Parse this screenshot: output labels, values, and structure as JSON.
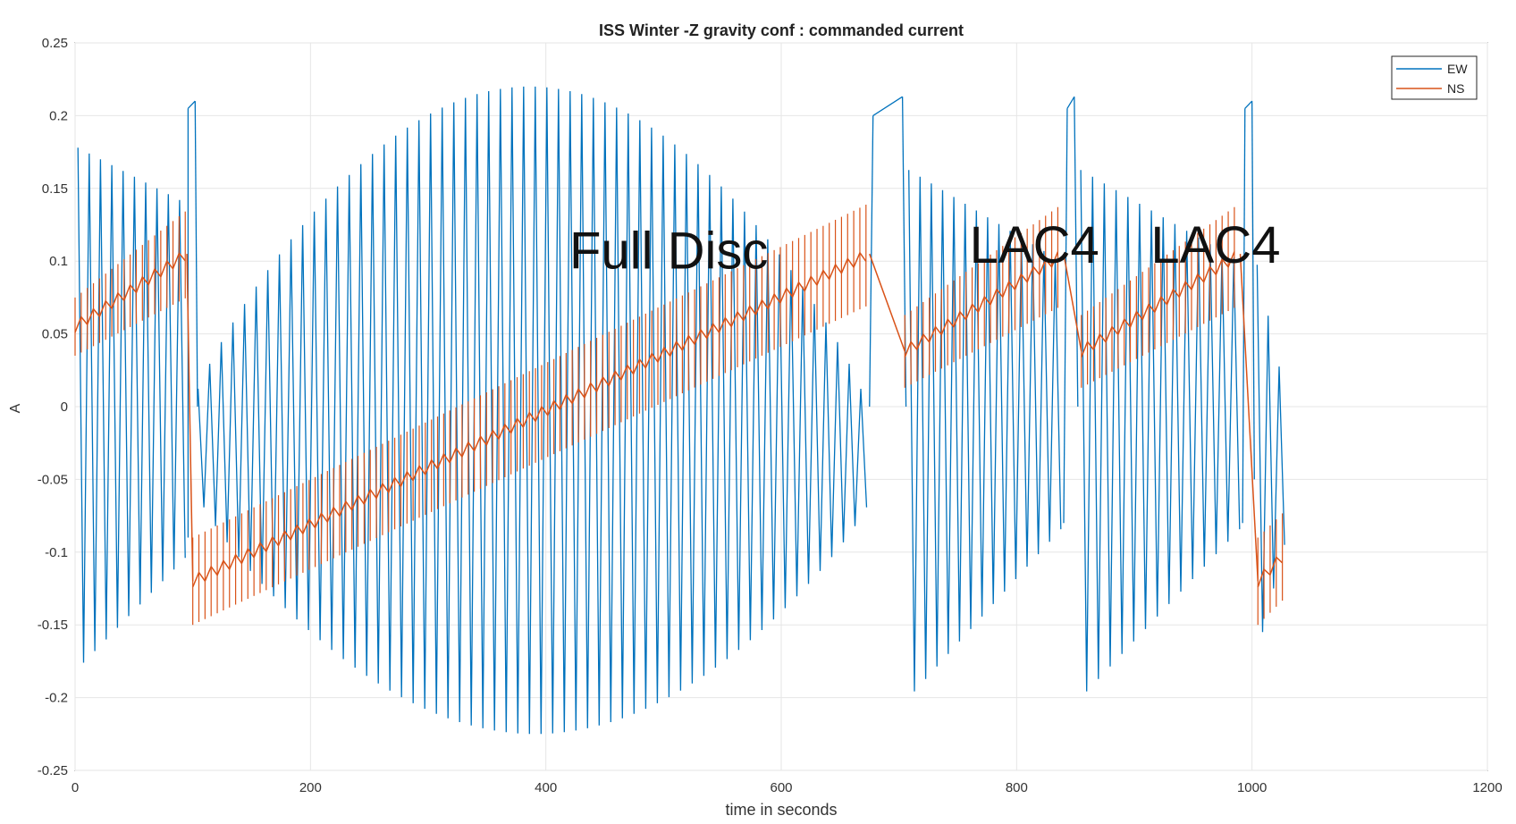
{
  "chart_data": {
    "type": "line",
    "title": "ISS Winter -Z gravity conf : commanded current",
    "xlabel": "time in seconds",
    "ylabel": "A",
    "xlim": [
      0,
      1200
    ],
    "ylim": [
      -0.25,
      0.25
    ],
    "xticks": [
      "0",
      "200",
      "400",
      "600",
      "800",
      "1000",
      "1200"
    ],
    "yticks": [
      "0.25",
      "0.2",
      "0.15",
      "0.1",
      "0.05",
      "0",
      "-0.05",
      "-0.1",
      "-0.15",
      "-0.2",
      "-0.25"
    ],
    "grid": true,
    "legend_position": "top-right",
    "series": [
      {
        "name": "EW",
        "color": "#0072BD",
        "segments": [
          {
            "t0": 0,
            "t1": 96,
            "cycles": 10,
            "upper": [
              0.18,
              0.14
            ],
            "lower": [
              -0.18,
              -0.1
            ]
          },
          {
            "t0": 96,
            "t1": 102,
            "ramp": [
              0.205,
              0.21
            ]
          },
          {
            "t0": 102,
            "t1": 675,
            "cycles": 58,
            "upper": [
              0.0,
              0.22,
              0.0
            ],
            "lower": [
              -0.06,
              -0.225,
              -0.07
            ]
          },
          {
            "t0": 678,
            "t1": 703,
            "ramp": [
              0.2,
              0.213
            ]
          },
          {
            "t0": 706,
            "t1": 840,
            "cycles": 14,
            "upper": [
              0.165,
              0.1
            ],
            "lower": [
              -0.2,
              -0.08
            ]
          },
          {
            "t0": 843,
            "t1": 849,
            "ramp": [
              0.205,
              0.213
            ]
          },
          {
            "t0": 852,
            "t1": 992,
            "cycles": 14,
            "upper": [
              0.165,
              0.1
            ],
            "lower": [
              -0.2,
              -0.08
            ]
          },
          {
            "t0": 994,
            "t1": 1000,
            "ramp": [
              0.205,
              0.21
            ]
          },
          {
            "t0": 1002,
            "t1": 1030,
            "cycles": 3,
            "upper": [
              0.115,
              0.01
            ],
            "lower": [
              -0.17,
              -0.08
            ]
          }
        ]
      },
      {
        "name": "NS",
        "color": "#D95319",
        "segments": [
          {
            "t0": 0,
            "t1": 95,
            "start": 0.055,
            "end": 0.105,
            "amp": [
              0.02,
              0.03
            ]
          },
          {
            "t0": 100,
            "t1": 675,
            "start": -0.12,
            "end": 0.105,
            "amp": [
              0.03,
              0.035
            ]
          },
          {
            "t0": 705,
            "t1": 840,
            "start": 0.038,
            "end": 0.105,
            "amp": [
              0.025,
              0.035
            ]
          },
          {
            "t0": 855,
            "t1": 990,
            "start": 0.038,
            "end": 0.105,
            "amp": [
              0.025,
              0.035
            ]
          },
          {
            "t0": 1005,
            "t1": 1030,
            "start": -0.12,
            "end": -0.1,
            "amp": [
              0.03,
              0.03
            ]
          }
        ]
      }
    ],
    "annotations": [
      {
        "text": "Full Disc",
        "x": 420,
        "y": 0.095
      },
      {
        "text": "LAC4",
        "x": 760,
        "y": 0.099
      },
      {
        "text": "LAC4",
        "x": 914,
        "y": 0.099
      }
    ]
  }
}
